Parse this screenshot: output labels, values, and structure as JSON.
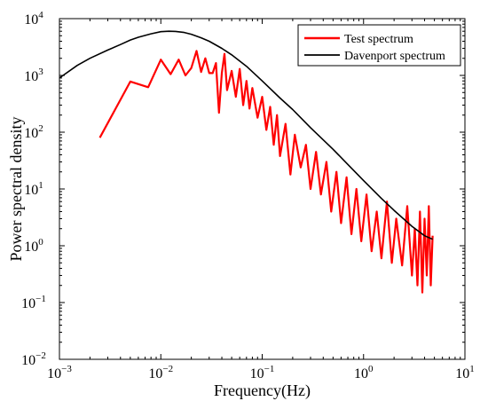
{
  "chart_data": {
    "type": "line",
    "xlabel": "Frequency(Hz)",
    "ylabel": "Power spectral density",
    "xscale": "log",
    "yscale": "log",
    "xlim": [
      0.001,
      10
    ],
    "ylim": [
      0.01,
      10000
    ],
    "x_ticks": [
      {
        "base": "10",
        "exp": "−3"
      },
      {
        "base": "10",
        "exp": "−2"
      },
      {
        "base": "10",
        "exp": "−1"
      },
      {
        "base": "10",
        "exp": "0"
      },
      {
        "base": "10",
        "exp": "1"
      }
    ],
    "y_ticks": [
      {
        "base": "10",
        "exp": "−2"
      },
      {
        "base": "10",
        "exp": "−1"
      },
      {
        "base": "10",
        "exp": "0"
      },
      {
        "base": "10",
        "exp": "1"
      },
      {
        "base": "10",
        "exp": "2"
      },
      {
        "base": "10",
        "exp": "3"
      },
      {
        "base": "10",
        "exp": "4"
      }
    ],
    "legend": "top-right",
    "grid": false,
    "series": [
      {
        "name": "Test spectrum",
        "color": "#ff0000",
        "x": [
          0.0025,
          0.005,
          0.0075,
          0.01,
          0.0125,
          0.015,
          0.0175,
          0.02,
          0.0225,
          0.025,
          0.0275,
          0.03,
          0.0325,
          0.035,
          0.0375,
          0.04,
          0.0425,
          0.045,
          0.05,
          0.055,
          0.06,
          0.065,
          0.07,
          0.075,
          0.08,
          0.09,
          0.1,
          0.11,
          0.12,
          0.13,
          0.14,
          0.15,
          0.17,
          0.19,
          0.21,
          0.24,
          0.27,
          0.3,
          0.34,
          0.38,
          0.43,
          0.48,
          0.54,
          0.6,
          0.68,
          0.76,
          0.85,
          0.95,
          1.07,
          1.2,
          1.35,
          1.5,
          1.7,
          1.9,
          2.1,
          2.4,
          2.7,
          3.0,
          3.2,
          3.4,
          3.6,
          3.8,
          4.0,
          4.2,
          4.4,
          4.6,
          4.8
        ],
        "y": [
          80,
          780,
          620,
          1900,
          1050,
          1900,
          1000,
          1350,
          2700,
          1150,
          2000,
          1100,
          1100,
          1650,
          220,
          1100,
          2400,
          550,
          1200,
          420,
          1300,
          300,
          800,
          260,
          600,
          180,
          420,
          110,
          280,
          60,
          200,
          38,
          140,
          18,
          90,
          24,
          60,
          10,
          45,
          8,
          30,
          4,
          20,
          2.5,
          16,
          1.6,
          10,
          1.2,
          8,
          0.8,
          4,
          0.6,
          6,
          0.5,
          3,
          0.45,
          5,
          0.3,
          2,
          0.2,
          4,
          0.15,
          3,
          0.3,
          5,
          0.2,
          1.5
        ]
      },
      {
        "name": "Davenport spectrum",
        "color": "#000000",
        "x": [
          0.001,
          0.0015,
          0.002,
          0.003,
          0.004,
          0.005,
          0.006,
          0.008,
          0.01,
          0.012,
          0.014,
          0.017,
          0.02,
          0.025,
          0.03,
          0.04,
          0.05,
          0.07,
          0.1,
          0.15,
          0.2,
          0.3,
          0.5,
          0.7,
          1,
          1.5,
          2,
          3,
          4,
          4.8
        ],
        "y": [
          900,
          1500,
          2000,
          2800,
          3500,
          4200,
          4700,
          5400,
          5900,
          6000,
          5950,
          5700,
          5300,
          4600,
          4000,
          3000,
          2300,
          1450,
          800,
          400,
          250,
          120,
          50,
          27,
          14,
          6.8,
          4.2,
          2.2,
          1.5,
          1.3
        ]
      }
    ]
  }
}
